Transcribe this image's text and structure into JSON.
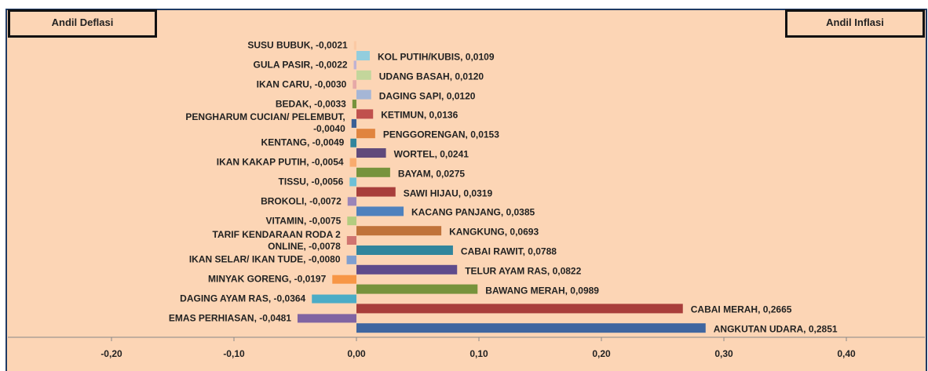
{
  "chart_data": {
    "type": "bar",
    "orientation": "horizontal",
    "xlim": [
      -0.2,
      0.4
    ],
    "xticks": [
      {
        "value": -0.2,
        "label": "-0,20"
      },
      {
        "value": -0.1,
        "label": "-0,10"
      },
      {
        "value": 0,
        "label": "0,00"
      },
      {
        "value": 0.1,
        "label": "0,10"
      },
      {
        "value": 0.2,
        "label": "0,20"
      },
      {
        "value": 0.3,
        "label": "0,30"
      },
      {
        "value": 0.4,
        "label": "0,40"
      }
    ],
    "series": [
      {
        "name": "Andil Deflasi",
        "value_labels": [
          "SUSU BUBUK, -0,0021",
          "GULA PASIR, -0,0022",
          "IKAN CARU, -0,0030",
          "BEDAK, -0,0033",
          "PENGHARUM CUCIAN/ PELEMBUT,\n-0,0040",
          "KENTANG, -0,0049",
          "IKAN KAKAP PUTIH, -0,0054",
          "TISSU, -0,0056",
          "BROKOLI, -0,0072",
          "VITAMIN, -0,0075",
          "TARIF KENDARAAN RODA 2\nONLINE, -0,0078",
          "IKAN SELAR/ IKAN TUDE, -0,0080",
          "MINYAK GORENG, -0,0197",
          "DAGING AYAM RAS, -0,0364",
          "EMAS PERHIASAN, -0,0481"
        ],
        "values": [
          -0.0021,
          -0.0022,
          -0.003,
          -0.0033,
          -0.004,
          -0.0049,
          -0.0054,
          -0.0056,
          -0.0072,
          -0.0075,
          -0.0078,
          -0.008,
          -0.0197,
          -0.0364,
          -0.0481
        ],
        "colors": [
          "#fbc9a4",
          "#c0b2d2",
          "#e6a9a7",
          "#77933c",
          "#3a5f95",
          "#31859c",
          "#f9ab6e",
          "#6fc0d6",
          "#9b85b8",
          "#b3cc7f",
          "#d07470",
          "#7f9fcf",
          "#f79646",
          "#4bacc6",
          "#8064a2"
        ]
      },
      {
        "name": "Andil Inflasi",
        "value_labels": [
          "KOL PUTIH/KUBIS, 0,0109",
          "UDANG BASAH, 0,0120",
          "DAGING SAPI, 0,0120",
          "KETIMUN, 0,0136",
          "PENGGORENGAN, 0,0153",
          "WORTEL, 0,0241",
          "BAYAM, 0,0275",
          "SAWI HIJAU, 0,0319",
          "KACANG PANJANG, 0,0385",
          "KANGKUNG, 0,0693",
          "CABAI RAWIT, 0,0788",
          "TELUR AYAM RAS, 0,0822",
          "BAWANG MERAH, 0,0989",
          "CABAI MERAH, 0,2665",
          "ANGKUTAN UDARA, 0,2851"
        ],
        "values": [
          0.0109,
          0.012,
          0.012,
          0.0136,
          0.0153,
          0.0241,
          0.0275,
          0.0319,
          0.0385,
          0.0693,
          0.0788,
          0.0822,
          0.0989,
          0.2665,
          0.2851
        ],
        "colors": [
          "#93cddd",
          "#c3d69b",
          "#a5b6d6",
          "#c0504d",
          "#e0843f",
          "#604a7b",
          "#77933c",
          "#a83e3b",
          "#4f81bd",
          "#c0733a",
          "#31859c",
          "#5f4b8b",
          "#77933c",
          "#a83e3b",
          "#3f66a0"
        ]
      }
    ]
  }
}
